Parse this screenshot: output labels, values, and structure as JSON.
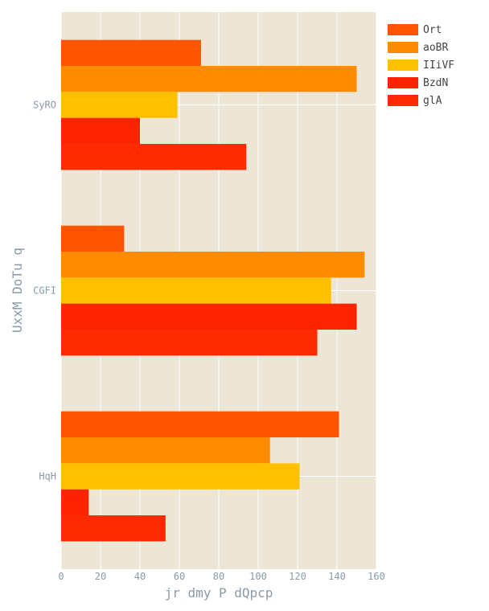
{
  "chart_data": {
    "type": "bar",
    "orientation": "horizontal",
    "categories": [
      "SyRO",
      "CGFI",
      "HqH"
    ],
    "series": [
      {
        "name": "Ort",
        "color": "#ff5500",
        "values": [
          71,
          32,
          141
        ]
      },
      {
        "name": "aoBR",
        "color": "#ff8c00",
        "values": [
          150,
          154,
          106
        ]
      },
      {
        "name": "IIiVF",
        "color": "#ffc000",
        "values": [
          59,
          137,
          121
        ]
      },
      {
        "name": "BzdN",
        "color": "#ff2400",
        "values": [
          40,
          150,
          14
        ]
      },
      {
        "name": "glA",
        "color": "#ff2a00",
        "values": [
          94,
          130,
          53
        ]
      }
    ],
    "xlabel": "jr dmy P dQpcp",
    "ylabel": "UxxM DoTu q",
    "xlim": [
      0,
      160
    ],
    "xticks": [
      0,
      20,
      40,
      60,
      80,
      100,
      120,
      140,
      160
    ],
    "grid": true,
    "legend_position": "top-right",
    "plot_background": "#ede6d6"
  }
}
